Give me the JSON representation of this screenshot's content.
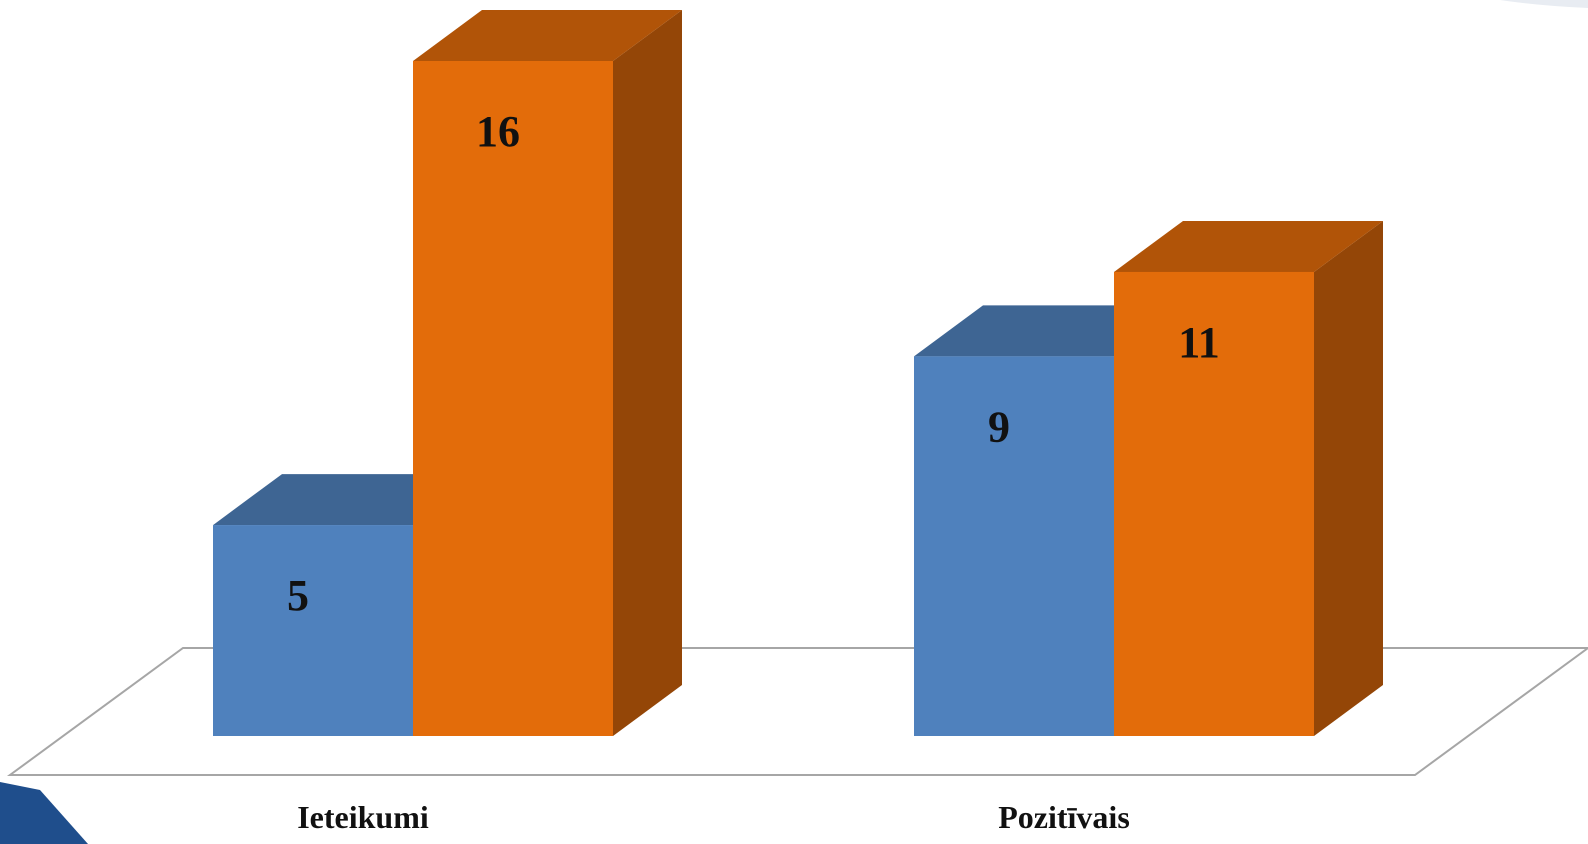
{
  "chart_data": {
    "type": "bar",
    "categories": [
      "Ieteikumi",
      "Pozitīvais"
    ],
    "series": [
      {
        "values": [
          5,
          9
        ],
        "color": "#4f81bd"
      },
      {
        "values": [
          16,
          11
        ],
        "color": "#e36c0a"
      }
    ],
    "ylim": [
      0,
      16
    ],
    "grid": false,
    "style": "3d-clustered-column"
  }
}
